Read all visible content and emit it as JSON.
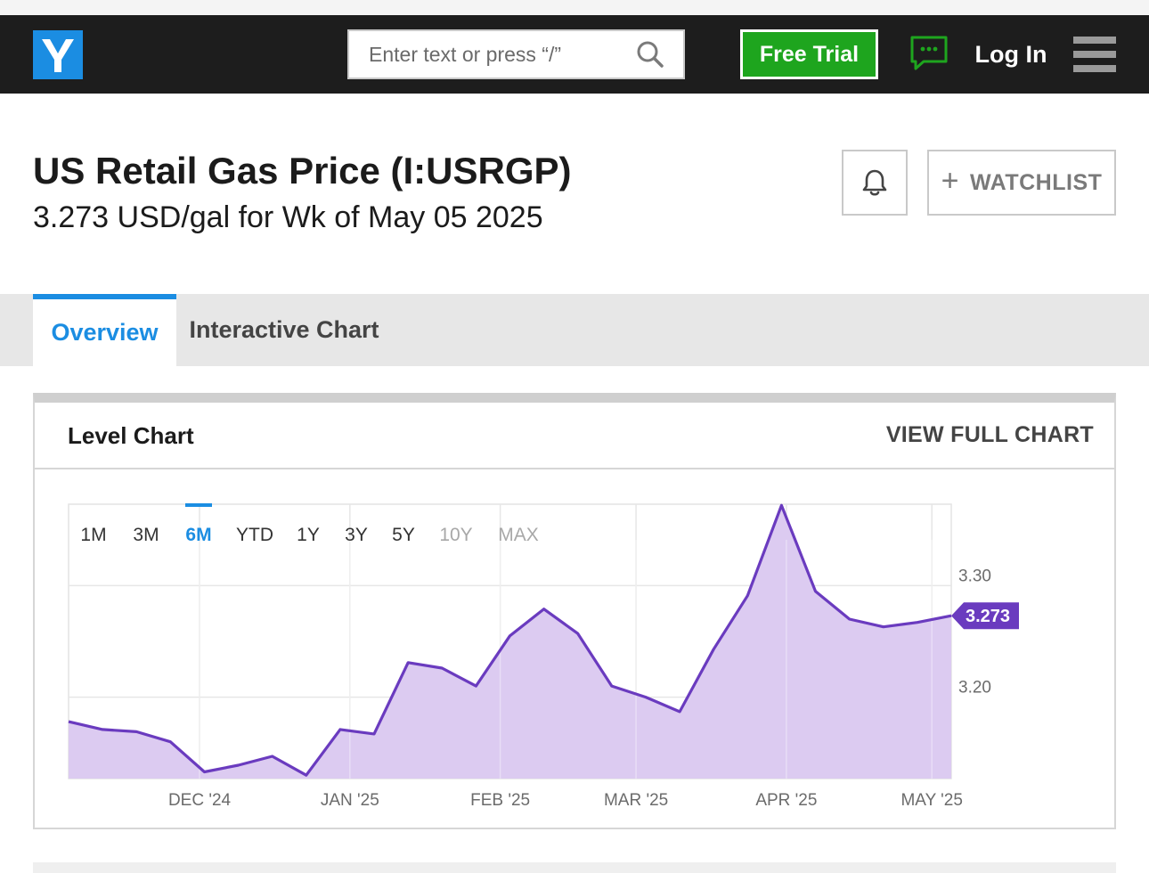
{
  "header": {
    "search_placeholder": "Enter text or press “/”",
    "free_trial_label": "Free Trial",
    "login_label": "Log In"
  },
  "page": {
    "title": "US Retail Gas Price (I:USRGP)",
    "subtitle": "3.273 USD/gal for Wk of May 05 2025",
    "watchlist_label": "WATCHLIST"
  },
  "tabs": [
    {
      "label": "Overview",
      "active": true
    },
    {
      "label": "Interactive Chart",
      "active": false
    }
  ],
  "card": {
    "title": "Level Chart",
    "view_full_label": "VIEW FULL CHART"
  },
  "colors": {
    "brand_blue": "#1b8de2",
    "trial_green": "#1ea51e",
    "line_purple": "#6a3bbf",
    "fill_purple": "#dccbf1",
    "header_bg": "#1d1d1d"
  },
  "chart_data": {
    "type": "area",
    "ranges": [
      "1M",
      "3M",
      "6M",
      "YTD",
      "1Y",
      "3Y",
      "5Y",
      "10Y",
      "MAX"
    ],
    "active_range": "6M",
    "disabled_ranges": [
      "10Y",
      "MAX"
    ],
    "x_tick_labels": [
      "DEC '24",
      "JAN '25",
      "FEB '25",
      "MAR '25",
      "APR '25",
      "MAY '25"
    ],
    "y_tick_labels": [
      "3.30",
      "3.20"
    ],
    "ylim": [
      3.127,
      3.373
    ],
    "current_value_label": "3.273",
    "x": [
      "2024-11-04",
      "2024-11-11",
      "2024-11-18",
      "2024-11-25",
      "2024-12-02",
      "2024-12-09",
      "2024-12-16",
      "2024-12-23",
      "2024-12-30",
      "2025-01-06",
      "2025-01-13",
      "2025-01-20",
      "2025-01-27",
      "2025-02-03",
      "2025-02-10",
      "2025-02-17",
      "2025-02-24",
      "2025-03-03",
      "2025-03-10",
      "2025-03-17",
      "2025-03-24",
      "2025-03-31",
      "2025-04-07",
      "2025-04-14",
      "2025-04-21",
      "2025-04-28",
      "2025-05-05"
    ],
    "values": [
      3.178,
      3.171,
      3.169,
      3.16,
      3.133,
      3.139,
      3.147,
      3.13,
      3.171,
      3.167,
      3.231,
      3.226,
      3.21,
      3.255,
      3.279,
      3.257,
      3.21,
      3.2,
      3.187,
      3.243,
      3.291,
      3.372,
      3.295,
      3.27,
      3.263,
      3.267,
      3.273
    ],
    "grid": true
  }
}
